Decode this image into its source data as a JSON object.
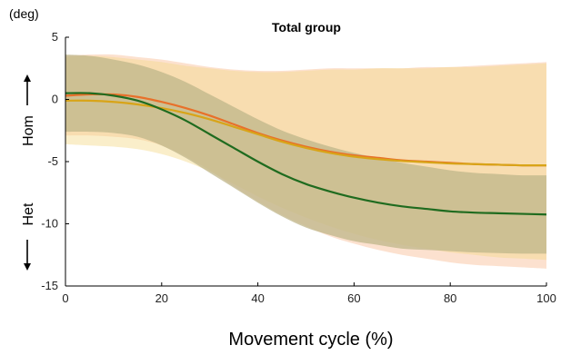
{
  "chart_data": {
    "type": "line",
    "title": "Total group",
    "y_unit": "(deg)",
    "xlabel": "Movement cycle (%)",
    "ylabel_top": "Hom",
    "ylabel_bottom": "Het",
    "xlim": [
      0,
      100
    ],
    "ylim": [
      -15,
      5
    ],
    "x_ticks": [
      0,
      20,
      40,
      60,
      80,
      100
    ],
    "y_ticks": [
      5,
      0,
      -5,
      -10,
      -15
    ],
    "grid": false,
    "series": [
      {
        "color": "#e8702a",
        "band_color": "#f9c9a8",
        "x": [
          0,
          5,
          10,
          15,
          20,
          25,
          30,
          35,
          40,
          45,
          50,
          55,
          60,
          65,
          70,
          75,
          80,
          85,
          90,
          95,
          100
        ],
        "y": [
          0.3,
          0.4,
          0.4,
          0.2,
          -0.2,
          -0.7,
          -1.3,
          -2.0,
          -2.7,
          -3.3,
          -3.8,
          -4.2,
          -4.5,
          -4.7,
          -4.9,
          -5.0,
          -5.1,
          -5.2,
          -5.25,
          -5.3,
          -5.3
        ],
        "upper": [
          3.5,
          3.6,
          3.6,
          3.4,
          3.2,
          2.9,
          2.6,
          2.4,
          2.3,
          2.3,
          2.4,
          2.5,
          2.5,
          2.5,
          2.5,
          2.6,
          2.6,
          2.7,
          2.8,
          2.9,
          3.0
        ],
        "lower": [
          -2.9,
          -2.9,
          -3.0,
          -3.2,
          -3.7,
          -4.6,
          -5.7,
          -7.0,
          -8.2,
          -9.3,
          -10.2,
          -11.0,
          -11.6,
          -12.1,
          -12.5,
          -12.8,
          -13.1,
          -13.3,
          -13.4,
          -13.5,
          -13.6
        ]
      },
      {
        "color": "#d8a418",
        "band_color": "#f5d98a",
        "x": [
          0,
          5,
          10,
          15,
          20,
          25,
          30,
          35,
          40,
          45,
          50,
          55,
          60,
          65,
          70,
          75,
          80,
          85,
          90,
          95,
          100
        ],
        "y": [
          -0.1,
          -0.1,
          -0.2,
          -0.4,
          -0.7,
          -1.1,
          -1.6,
          -2.2,
          -2.8,
          -3.4,
          -3.9,
          -4.3,
          -4.6,
          -4.8,
          -4.95,
          -5.05,
          -5.15,
          -5.2,
          -5.25,
          -5.3,
          -5.3
        ],
        "upper": [
          3.4,
          3.5,
          3.4,
          3.2,
          3.0,
          2.7,
          2.5,
          2.3,
          2.2,
          2.2,
          2.3,
          2.4,
          2.4,
          2.5,
          2.5,
          2.5,
          2.6,
          2.6,
          2.7,
          2.8,
          2.9
        ],
        "lower": [
          -3.6,
          -3.7,
          -3.8,
          -4.0,
          -4.4,
          -5.0,
          -5.8,
          -6.8,
          -7.8,
          -8.7,
          -9.5,
          -10.2,
          -10.8,
          -11.3,
          -11.7,
          -12.0,
          -12.3,
          -12.5,
          -12.7,
          -12.8,
          -12.9
        ]
      },
      {
        "color": "#1f6b1f",
        "band_color": "#bfb68a",
        "x": [
          0,
          5,
          10,
          15,
          20,
          25,
          30,
          35,
          40,
          45,
          50,
          55,
          60,
          65,
          70,
          75,
          80,
          85,
          90,
          95,
          100
        ],
        "y": [
          0.5,
          0.5,
          0.3,
          -0.1,
          -0.8,
          -1.7,
          -2.8,
          -3.9,
          -5.0,
          -6.0,
          -6.8,
          -7.4,
          -7.9,
          -8.3,
          -8.6,
          -8.8,
          -9.0,
          -9.1,
          -9.15,
          -9.2,
          -9.25
        ],
        "upper": [
          3.6,
          3.5,
          3.2,
          2.8,
          2.2,
          1.4,
          0.4,
          -0.6,
          -1.6,
          -2.5,
          -3.2,
          -3.8,
          -4.3,
          -4.7,
          -5.1,
          -5.4,
          -5.7,
          -5.9,
          -6.0,
          -6.1,
          -6.1
        ],
        "lower": [
          -2.6,
          -2.6,
          -2.7,
          -3.0,
          -3.7,
          -4.7,
          -5.9,
          -7.1,
          -8.3,
          -9.4,
          -10.3,
          -10.9,
          -11.4,
          -11.7,
          -12.0,
          -12.1,
          -12.2,
          -12.3,
          -12.35,
          -12.4,
          -12.4
        ]
      }
    ]
  }
}
